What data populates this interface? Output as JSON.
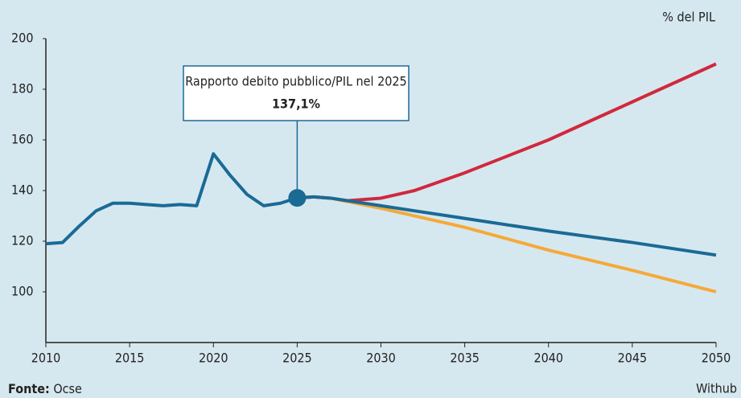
{
  "chart_data": {
    "type": "line",
    "unit_label": "% del PIL",
    "xlim": [
      2010,
      2050
    ],
    "xticks": [
      2010,
      2015,
      2020,
      2025,
      2030,
      2035,
      2040,
      2045,
      2050
    ],
    "ylim": [
      80,
      200
    ],
    "yticks": [
      100,
      120,
      140,
      160,
      180,
      200
    ],
    "grid": false,
    "series": [
      {
        "color": "#1a6a96",
        "x": [
          2010,
          2011,
          2012,
          2013,
          2014,
          2015,
          2016,
          2017,
          2018,
          2019,
          2020,
          2021,
          2022,
          2023,
          2024,
          2025,
          2026,
          2027,
          2030,
          2035,
          2040,
          2045,
          2050
        ],
        "values": [
          119,
          119.5,
          126,
          132,
          135,
          135,
          134.5,
          134,
          134.5,
          134,
          154.5,
          146,
          138.5,
          134,
          135,
          137.1,
          137.5,
          137,
          134,
          129,
          124,
          119.5,
          114.5
        ]
      },
      {
        "color": "#d0293d",
        "x": [
          2025,
          2026,
          2027,
          2028,
          2030,
          2032,
          2035,
          2040,
          2045,
          2050
        ],
        "values": [
          137.1,
          137.5,
          137,
          136,
          137,
          140,
          147,
          160,
          175,
          190
        ]
      },
      {
        "color": "#f5a93a",
        "x": [
          2025,
          2026,
          2027,
          2030,
          2035,
          2040,
          2045,
          2050
        ],
        "values": [
          137.1,
          137.5,
          137,
          133,
          125.5,
          116.5,
          108.5,
          100
        ]
      }
    ],
    "annotation": {
      "text": "Rapporto debito pubblico/PIL nel 2025",
      "x": 2025,
      "value": 137.1,
      "value_label": "137,1%"
    },
    "source_label": "Fonte:",
    "source": "Ocse",
    "credit": "Withub"
  }
}
